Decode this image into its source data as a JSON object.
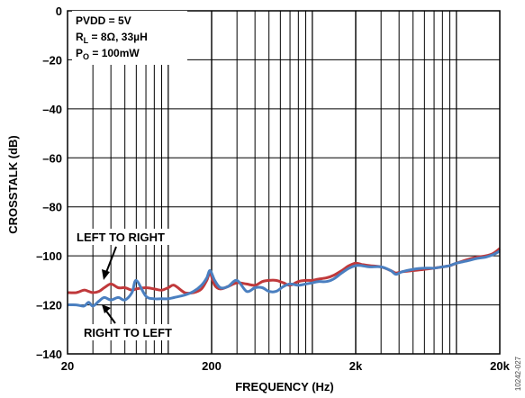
{
  "chart_data": {
    "type": "line",
    "title": "",
    "xlabel": "FREQUENCY (Hz)",
    "ylabel": "CROSSTALK (dB)",
    "x_scale": "log",
    "xlim": [
      20,
      20000
    ],
    "ylim": [
      -140,
      0
    ],
    "grid": true,
    "x_ticks": [
      20,
      200,
      2000,
      20000
    ],
    "x_tick_labels": [
      "20",
      "200",
      "2k",
      "20k"
    ],
    "y_ticks": [
      0,
      -20,
      -40,
      -60,
      -80,
      -100,
      -120,
      -140
    ],
    "y_tick_labels": [
      "0",
      "–20",
      "–40",
      "–60",
      "–80",
      "–100",
      "–120",
      "–140"
    ],
    "conditions": {
      "line1": "PVDD = 5V",
      "line2_main": "R",
      "line2_sub": "L",
      "line2_rest": " = 8Ω, 33µH",
      "line3_main": "P",
      "line3_sub": "O",
      "line3_rest": " = 100mW"
    },
    "annotations": [
      "LEFT TO RIGHT",
      "RIGHT TO LEFT"
    ],
    "figure_id": "10242-027",
    "series": [
      {
        "color": "#c0393b",
        "x": [
          20,
          23,
          26,
          28,
          30,
          33,
          36,
          40,
          45,
          50,
          56,
          60,
          70,
          80,
          90,
          100,
          110,
          130,
          150,
          170,
          185,
          195,
          210,
          230,
          260,
          300,
          350,
          400,
          450,
          500,
          560,
          630,
          700,
          800,
          900,
          1000,
          1100,
          1250,
          1400,
          1600,
          1800,
          2000,
          2200,
          2500,
          3000,
          3500,
          3800,
          4200,
          5000,
          6000,
          7000,
          8000,
          9000,
          10000,
          12000,
          14000,
          16000,
          18000,
          20000
        ],
        "y": [
          -115,
          -115,
          -114,
          -114.5,
          -115,
          -114.5,
          -113,
          -111.5,
          -113,
          -113,
          -114,
          -113.5,
          -113,
          -113.5,
          -114,
          -113,
          -112,
          -115,
          -115,
          -113.5,
          -110,
          -107,
          -112,
          -113.5,
          -112.5,
          -111,
          -111.5,
          -112,
          -110.5,
          -110,
          -110,
          -111,
          -112,
          -110.5,
          -110,
          -110,
          -109.5,
          -109,
          -108,
          -106,
          -104,
          -103,
          -103.5,
          -104,
          -104.5,
          -106,
          -107,
          -106.5,
          -106,
          -105.5,
          -105,
          -104.5,
          -104,
          -103,
          -101.5,
          -100.5,
          -100,
          -99,
          -97
        ]
      },
      {
        "color": "#4a7fc0",
        "x": [
          20,
          23,
          26,
          28,
          30,
          33,
          36,
          40,
          45,
          50,
          56,
          60,
          70,
          80,
          90,
          100,
          110,
          130,
          150,
          170,
          185,
          195,
          210,
          230,
          260,
          300,
          350,
          400,
          450,
          500,
          560,
          630,
          700,
          800,
          900,
          1000,
          1100,
          1250,
          1400,
          1600,
          1800,
          2000,
          2200,
          2500,
          3000,
          3500,
          3800,
          4200,
          5000,
          6000,
          7000,
          8000,
          9000,
          10000,
          12000,
          14000,
          16000,
          18000,
          20000
        ],
        "y": [
          -120,
          -120,
          -120.5,
          -119,
          -120.5,
          -118.5,
          -117,
          -118,
          -117,
          -118,
          -115,
          -110,
          -116.5,
          -117.5,
          -117.5,
          -117.5,
          -117,
          -116,
          -114.5,
          -112,
          -109,
          -106,
          -110,
          -113,
          -112.5,
          -110,
          -114.5,
          -113,
          -113,
          -114.5,
          -114.5,
          -112.5,
          -111.5,
          -112,
          -111.5,
          -111,
          -110.5,
          -110.5,
          -109.5,
          -107,
          -105,
          -104,
          -104,
          -104.5,
          -104.5,
          -106,
          -107.5,
          -106.5,
          -105.5,
          -105,
          -105,
          -104.5,
          -104,
          -103,
          -102,
          -101,
          -100.5,
          -99.5,
          -98
        ]
      }
    ]
  }
}
